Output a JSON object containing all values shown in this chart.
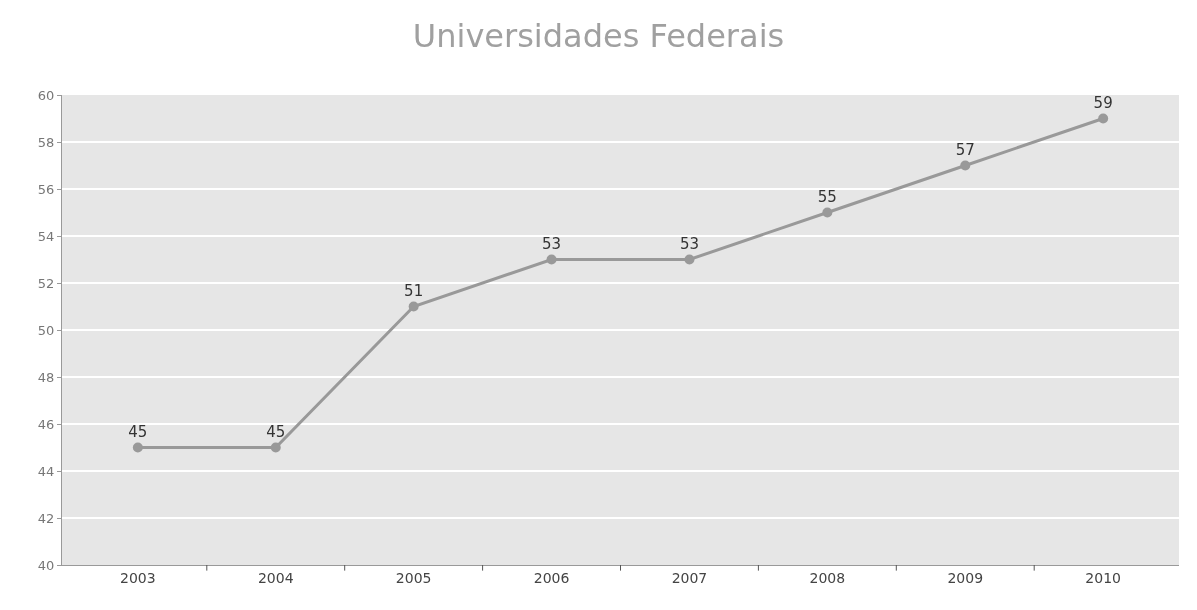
{
  "chart_data": {
    "type": "line",
    "title": "Universidades Federais",
    "categories": [
      "2003",
      "2004",
      "2005",
      "2006",
      "2007",
      "2008",
      "2009",
      "2010"
    ],
    "series": [
      {
        "color": "#999999",
        "values": [
          45,
          45,
          51,
          53,
          53,
          55,
          57,
          59
        ]
      }
    ],
    "ylim": [
      40,
      60
    ],
    "yticks": [
      40,
      42,
      44,
      46,
      48,
      50,
      52,
      54,
      56,
      58,
      60
    ],
    "grid": "y",
    "legend": false,
    "marker": "circle",
    "line_style": "solid",
    "data_labels": true
  }
}
